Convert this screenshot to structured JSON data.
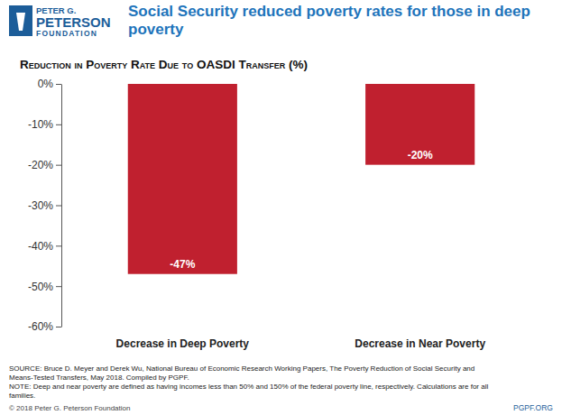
{
  "chart_data": {
    "type": "bar",
    "title": "Social Security reduced poverty rates for those in deep poverty",
    "y_label": "Reduction in Poverty Rate Due to OASDI Transfer (%)",
    "categories": [
      "Decrease in Deep Poverty",
      "Decrease in Near Poverty"
    ],
    "values": [
      -47,
      -20
    ],
    "value_labels": [
      "-47%",
      "-20%"
    ],
    "color": "#c0202f",
    "ylim": [
      -60,
      0
    ],
    "yticks": [
      {
        "value": 0,
        "label": "0%"
      },
      {
        "value": -10,
        "label": "-10%"
      },
      {
        "value": -20,
        "label": "-20%"
      },
      {
        "value": -30,
        "label": "-30%"
      },
      {
        "value": -40,
        "label": "-40%"
      },
      {
        "value": -50,
        "label": "-50%"
      },
      {
        "value": -60,
        "label": "-60%"
      }
    ],
    "grid": false,
    "data_labels": true,
    "logo": [
      "PETER G.",
      "PETERSON",
      "FOUNDATION"
    ],
    "source": [
      "SOURCE: Bruce D. Meyer and Derek Wu, National Bureau of Economic Research Working Papers, The Poverty Reduction of Social Security and",
      "Means-Tested Transfers, May 2018. Compiled by PGPF."
    ],
    "note": [
      "NOTE: Deep and near poverty are defined as having incomes less than 50% and 150% of the federal poverty line, respectively. Calculations are for all",
      "families."
    ],
    "copyright": "© 2018 Peter G. Peterson Foundation",
    "website": "PGPF.ORG"
  }
}
